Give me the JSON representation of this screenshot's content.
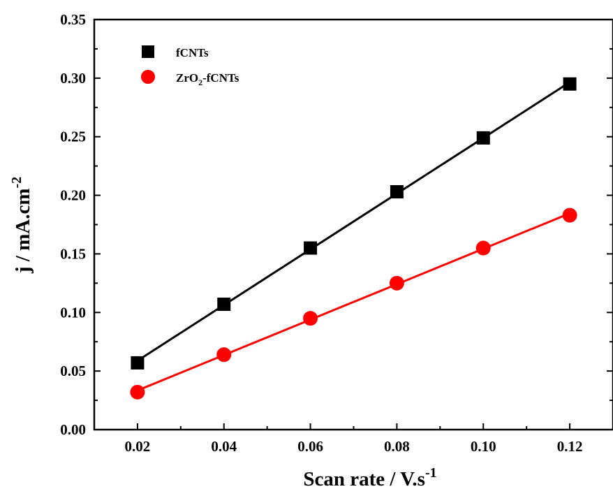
{
  "chart_data": {
    "type": "scatter",
    "xlabel": "Scan rate / V.s",
    "xlabel_superscript": "-1",
    "ylabel": "j / mA.cm",
    "ylabel_superscript": "-2",
    "xlim": [
      0.01,
      0.13
    ],
    "ylim": [
      0.0,
      0.35
    ],
    "x_ticks": [
      "0.02",
      "0.04",
      "0.06",
      "0.08",
      "0.10",
      "0.12"
    ],
    "y_ticks": [
      "0.00",
      "0.05",
      "0.10",
      "0.15",
      "0.20",
      "0.25",
      "0.30",
      "0.35"
    ],
    "grid": false,
    "legend_position": "top-left",
    "x": [
      0.02,
      0.04,
      0.06,
      0.08,
      0.1,
      0.12
    ],
    "series": [
      {
        "name": "fCNTs",
        "marker": "square",
        "color": "#000000",
        "fit_line": true,
        "values": [
          0.057,
          0.107,
          0.155,
          0.203,
          0.249,
          0.295
        ]
      },
      {
        "name": "ZrO2-fCNTs",
        "name_parts": [
          "ZrO",
          "2",
          "-fCNTs"
        ],
        "marker": "circle",
        "color": "#ff0000",
        "fit_line": true,
        "values": [
          0.032,
          0.064,
          0.095,
          0.125,
          0.155,
          0.183
        ]
      }
    ]
  }
}
